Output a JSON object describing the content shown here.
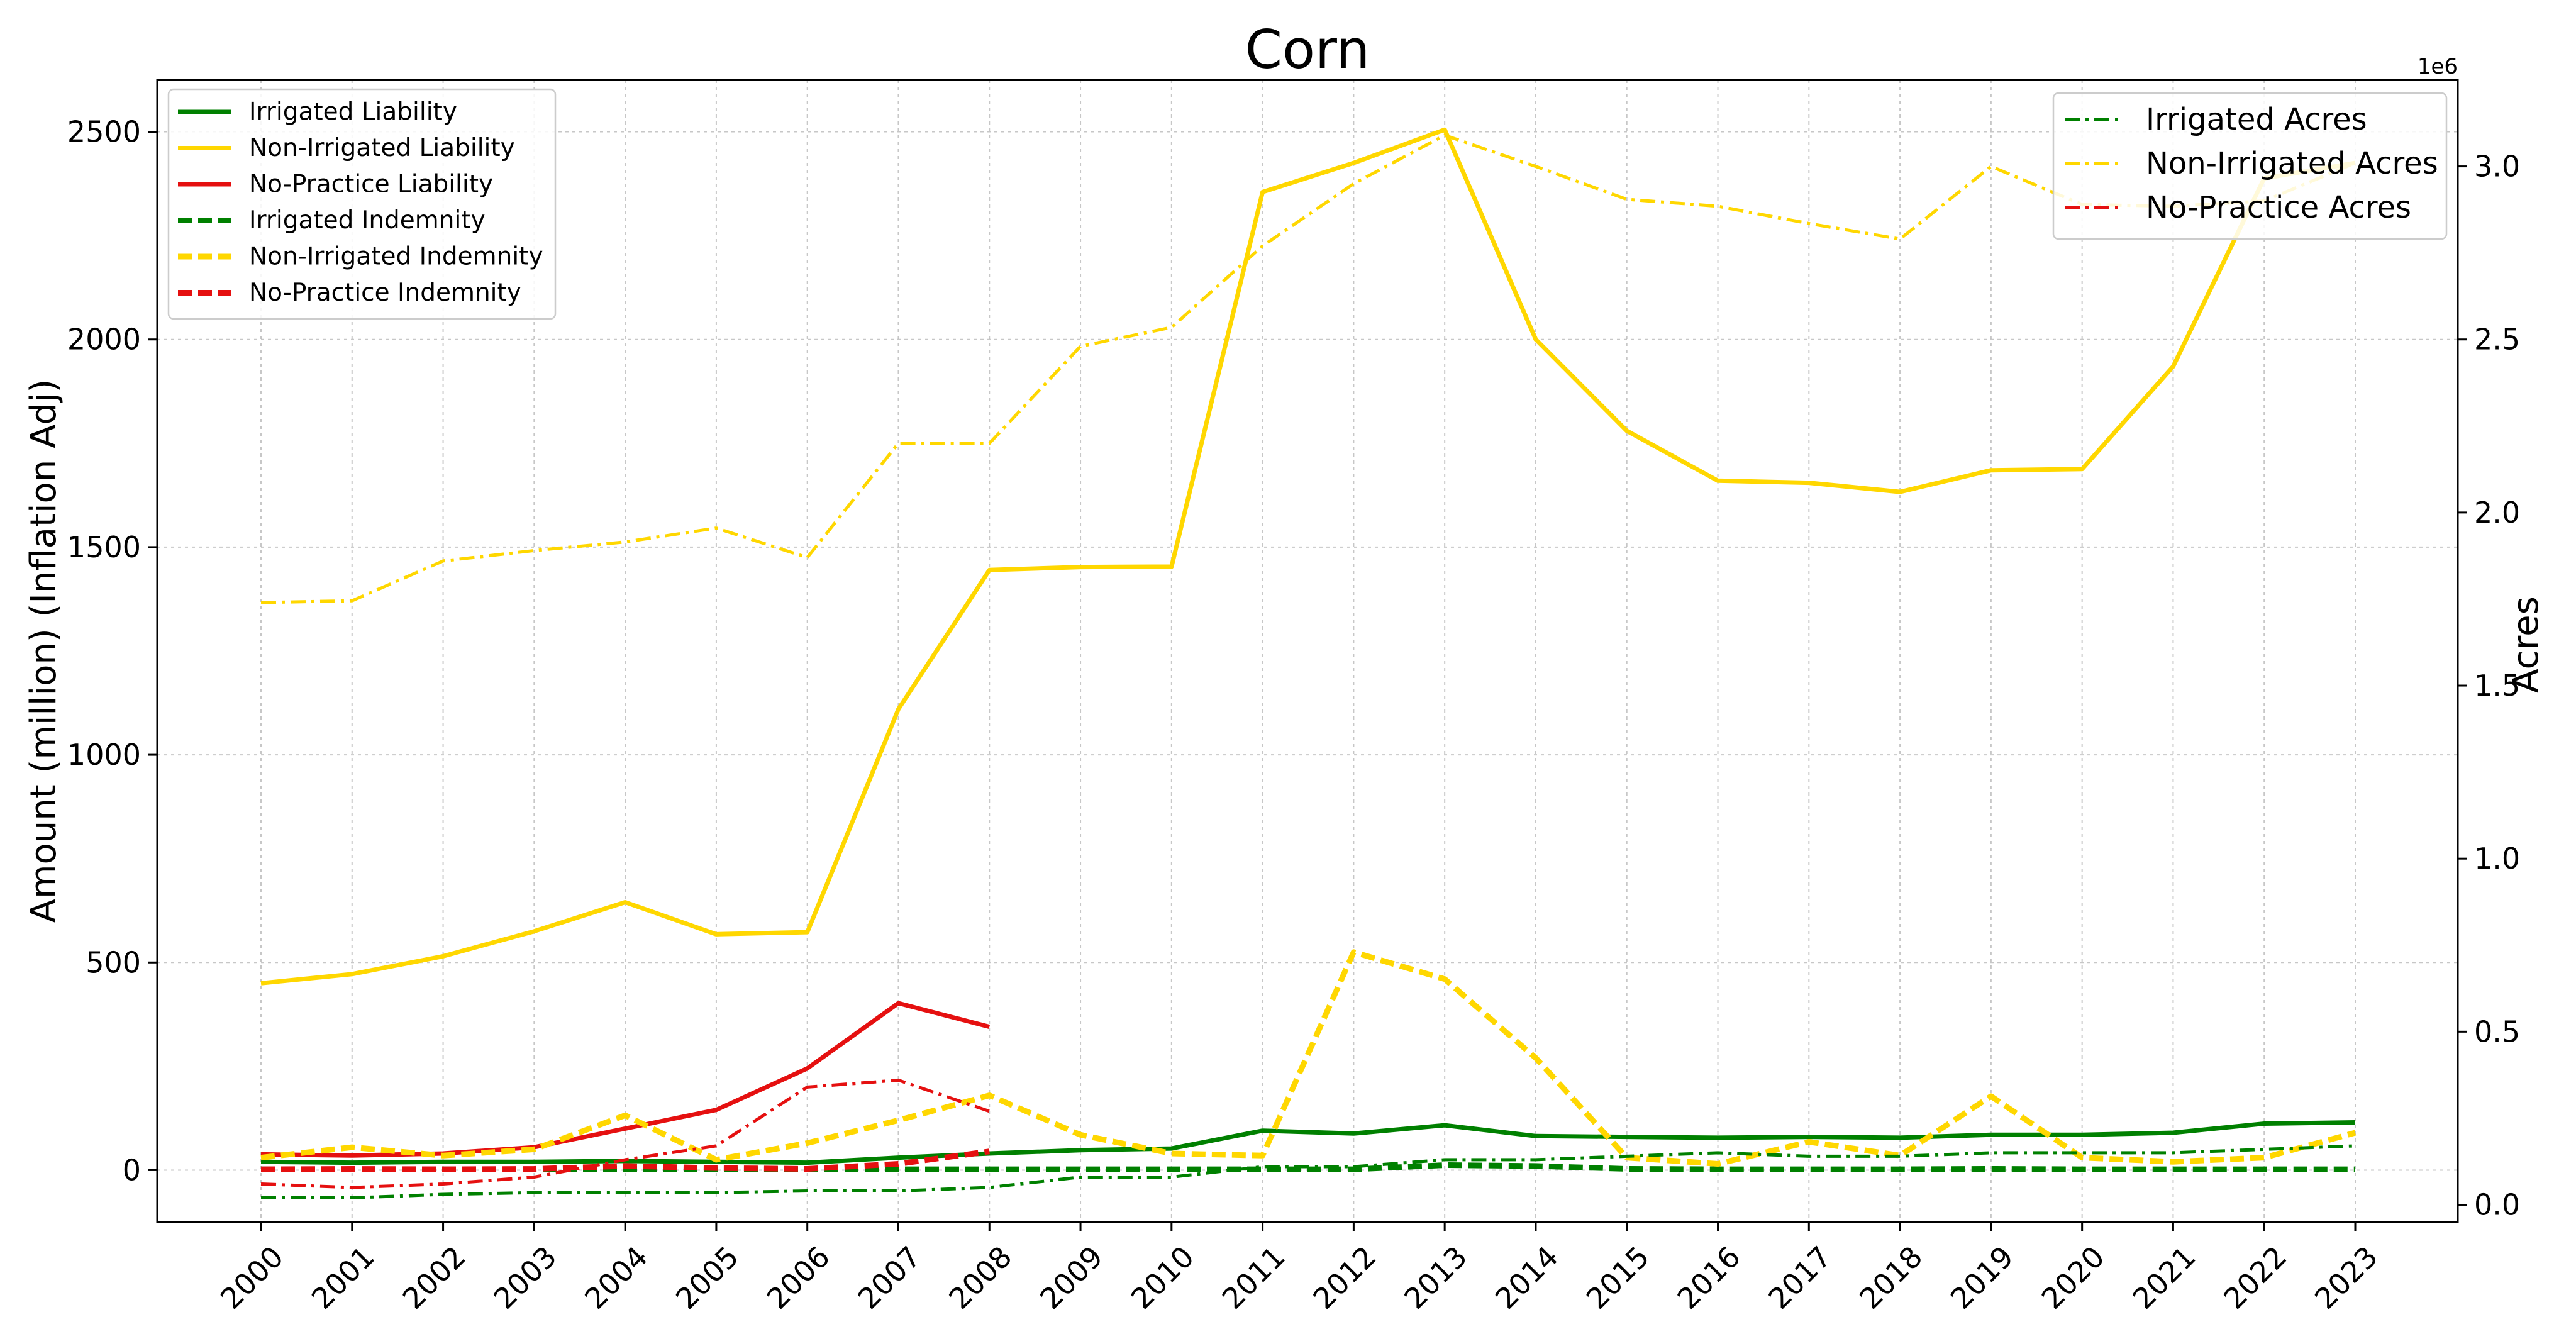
{
  "chart_data": {
    "type": "line",
    "title": "Corn",
    "xlabel": "",
    "ylabel": "Amount (million) (Inflation Adj)",
    "y2label": "Acres",
    "y2_offset_text": "1e6",
    "categories": [
      "2000",
      "2001",
      "2002",
      "2003",
      "2004",
      "2005",
      "2006",
      "2007",
      "2008",
      "2009",
      "2010",
      "2011",
      "2012",
      "2013",
      "2014",
      "2015",
      "2016",
      "2017",
      "2018",
      "2019",
      "2020",
      "2021",
      "2022",
      "2023"
    ],
    "ylim": [
      -125,
      2625
    ],
    "yticks": [
      0,
      500,
      1000,
      1500,
      2000,
      2500
    ],
    "y2lim": [
      -0.05,
      3.25
    ],
    "y2ticks": [
      0.0,
      0.5,
      1.0,
      1.5,
      2.0,
      2.5,
      3.0
    ],
    "y2tick_labels": [
      "0.0",
      "0.5",
      "1.0",
      "1.5",
      "2.0",
      "2.5",
      "3.0"
    ],
    "grid": true,
    "legend_left_placement": "upper left",
    "legend_right_placement": "upper right",
    "series": [
      {
        "name": "Irrigated Liability",
        "axis": "left",
        "color": "#008000",
        "style": "solid",
        "values": [
          20,
          18,
          20,
          20,
          22,
          20,
          18,
          30,
          40,
          48,
          52,
          95,
          88,
          108,
          82,
          80,
          78,
          80,
          78,
          85,
          85,
          90,
          112,
          115
        ]
      },
      {
        "name": "Non-Irrigated Liability",
        "axis": "left",
        "color": "#FFD700",
        "style": "solid",
        "values": [
          450,
          472,
          515,
          575,
          645,
          568,
          573,
          1110,
          1445,
          1452,
          1453,
          2355,
          2425,
          2505,
          2000,
          1780,
          1660,
          1655,
          1633,
          1685,
          1688,
          1935,
          2388,
          2425
        ]
      },
      {
        "name": "No-Practice Liability",
        "axis": "left",
        "color": "#E51010",
        "style": "solid",
        "values": [
          38,
          35,
          40,
          55,
          100,
          145,
          245,
          402,
          345,
          null,
          null,
          null,
          null,
          null,
          null,
          null,
          null,
          null,
          null,
          null,
          null,
          null,
          null,
          null
        ]
      },
      {
        "name": "Irrigated Indemnity",
        "axis": "left",
        "color": "#008000",
        "style": "dashed",
        "values": [
          2,
          2,
          2,
          2,
          3,
          2,
          2,
          2,
          2,
          2,
          2,
          2,
          2,
          12,
          10,
          3,
          2,
          2,
          2,
          3,
          2,
          2,
          2,
          2
        ]
      },
      {
        "name": "Non-Irrigated Indemnity",
        "axis": "left",
        "color": "#FFD700",
        "style": "dashed",
        "values": [
          30,
          55,
          35,
          50,
          132,
          25,
          65,
          120,
          180,
          85,
          40,
          35,
          525,
          460,
          270,
          30,
          15,
          68,
          35,
          178,
          30,
          20,
          30,
          90
        ]
      },
      {
        "name": "No-Practice Indemnity",
        "axis": "left",
        "color": "#E51010",
        "style": "dashed",
        "values": [
          2,
          3,
          2,
          3,
          10,
          5,
          3,
          15,
          45,
          null,
          null,
          null,
          null,
          null,
          null,
          null,
          null,
          null,
          null,
          null,
          null,
          null,
          null,
          null
        ]
      },
      {
        "name": "Irrigated Acres",
        "axis": "right",
        "color": "#008000",
        "style": "dashdot",
        "values": [
          0.02,
          0.02,
          0.03,
          0.035,
          0.035,
          0.035,
          0.04,
          0.04,
          0.05,
          0.08,
          0.08,
          0.11,
          0.11,
          0.13,
          0.13,
          0.14,
          0.15,
          0.14,
          0.14,
          0.15,
          0.15,
          0.15,
          0.16,
          0.17
        ]
      },
      {
        "name": "Non-Irrigated Acres",
        "axis": "right",
        "color": "#FFD700",
        "style": "dashdot",
        "values": [
          1.74,
          1.745,
          1.86,
          1.89,
          1.915,
          1.955,
          1.87,
          2.2,
          2.2,
          2.48,
          2.535,
          2.77,
          2.95,
          3.09,
          3.0,
          2.905,
          2.885,
          2.835,
          2.79,
          3.0,
          2.89,
          2.885,
          2.9,
          3.01
        ]
      },
      {
        "name": "No-Practice Acres",
        "axis": "right",
        "color": "#E51010",
        "style": "dashdot",
        "values": [
          0.06,
          0.05,
          0.06,
          0.08,
          0.13,
          0.17,
          0.34,
          0.36,
          0.27,
          null,
          null,
          null,
          null,
          null,
          null,
          null,
          null,
          null,
          null,
          null,
          null,
          null,
          null,
          null
        ]
      }
    ]
  }
}
